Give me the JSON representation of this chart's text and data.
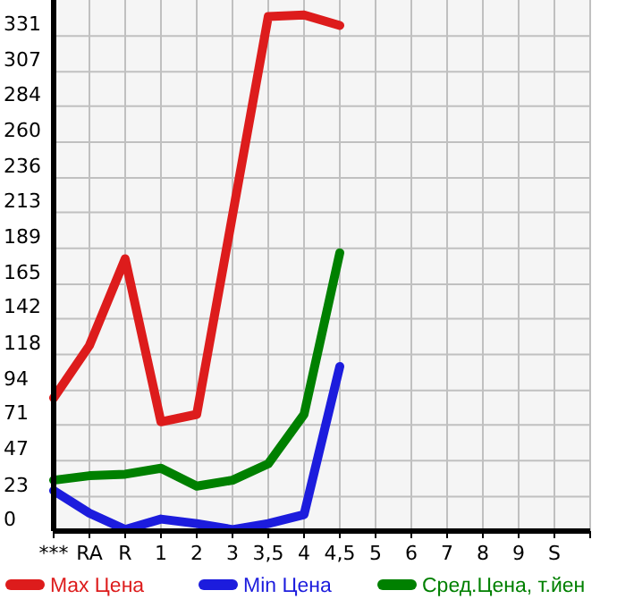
{
  "chart_data": {
    "type": "line",
    "categories": [
      "***",
      "RA",
      "R",
      "1",
      "2",
      "3",
      "3,5",
      "4",
      "4,5",
      "5",
      "6",
      "7",
      "8",
      "9",
      "S",
      null
    ],
    "series": [
      {
        "name": "Max Цена",
        "color": "#dd1c1c",
        "values": [
          89,
          124,
          182,
          73,
          78,
          211,
          344,
          345,
          338,
          null,
          null,
          null,
          null,
          null,
          null,
          null
        ]
      },
      {
        "name": "Min Цена",
        "color": "#1c1cdd",
        "values": [
          27,
          12,
          1,
          8,
          5,
          1,
          5,
          11,
          110,
          null,
          null,
          null,
          null,
          null,
          null,
          null
        ]
      },
      {
        "name": "Сред.Цена, т.йен",
        "color": "#008000",
        "values": [
          34,
          37,
          38,
          42,
          30,
          34,
          45,
          78,
          186,
          null,
          null,
          null,
          null,
          null,
          null,
          null
        ]
      }
    ],
    "ylim": [
      0,
      355
    ],
    "yticks": [
      0,
      23,
      47,
      71,
      94,
      118,
      142,
      165,
      189,
      213,
      236,
      260,
      284,
      307,
      331
    ],
    "grid": true,
    "legend": "bottom",
    "marker": "none",
    "line_style": "solid"
  }
}
